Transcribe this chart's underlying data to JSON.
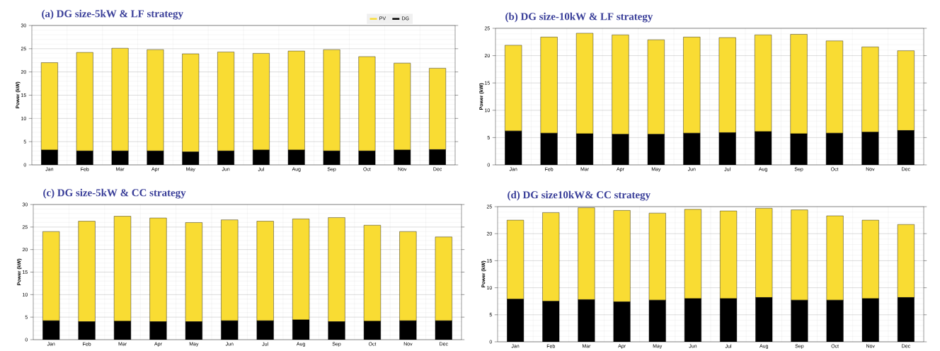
{
  "chart_data": [
    {
      "type": "bar",
      "title": "(a) DG size-5kW & LF strategy",
      "ylabel": "Power (kW)",
      "categories": [
        "Jan",
        "Feb",
        "Mar",
        "Apr",
        "May",
        "Jun",
        "Jul",
        "Aug",
        "Sep",
        "Oct",
        "Nov",
        "Dec"
      ],
      "stacked": true,
      "ylim": [
        0,
        30
      ],
      "yticks": [
        0,
        5,
        10,
        15,
        20,
        25,
        30
      ],
      "grid": true,
      "legend": "top right",
      "series": [
        {
          "name": "DG",
          "color": "#000000",
          "values": [
            3.2,
            3.0,
            3.0,
            3.0,
            2.8,
            3.0,
            3.2,
            3.2,
            3.0,
            3.0,
            3.2,
            3.3
          ]
        },
        {
          "name": "PV",
          "color": "#f9dc33",
          "values": [
            18.8,
            21.2,
            22.1,
            21.8,
            21.1,
            21.3,
            20.8,
            21.3,
            21.8,
            20.3,
            18.7,
            17.5
          ]
        }
      ]
    },
    {
      "type": "bar",
      "title": "(b) DG size-10kW & LF strategy",
      "ylabel": "Power (kW)",
      "categories": [
        "Jan",
        "Feb",
        "Mar",
        "Apr",
        "May",
        "Jun",
        "Jul",
        "Aug",
        "Sep",
        "Oct",
        "Nov",
        "Dec"
      ],
      "stacked": true,
      "ylim": [
        0,
        25
      ],
      "yticks": [
        0,
        5,
        10,
        15,
        20,
        25
      ],
      "grid": true,
      "series": [
        {
          "color": "#000000",
          "values": [
            6.2,
            5.8,
            5.7,
            5.6,
            5.6,
            5.8,
            5.9,
            6.1,
            5.7,
            5.8,
            6.0,
            6.3
          ]
        },
        {
          "color": "#f9dc33",
          "values": [
            15.7,
            17.6,
            18.4,
            18.2,
            17.3,
            17.6,
            17.4,
            17.7,
            18.2,
            16.9,
            15.6,
            14.6
          ]
        }
      ]
    },
    {
      "type": "bar",
      "title": "(c) DG size-5kW & CC strategy",
      "ylabel": "Power (kW)",
      "categories": [
        "Jan",
        "Feb",
        "Mar",
        "Apr",
        "May",
        "Jun",
        "Jul",
        "Aug",
        "Sep",
        "Oct",
        "Nov",
        "Dec"
      ],
      "stacked": true,
      "ylim": [
        0,
        30
      ],
      "yticks": [
        0,
        5,
        10,
        15,
        20,
        25,
        30
      ],
      "grid": true,
      "series": [
        {
          "color": "#000000",
          "values": [
            4.2,
            4.0,
            4.1,
            4.0,
            4.0,
            4.2,
            4.2,
            4.4,
            4.0,
            4.1,
            4.2,
            4.2
          ]
        },
        {
          "color": "#f9dc33",
          "values": [
            19.8,
            22.3,
            23.3,
            23.0,
            22.0,
            22.4,
            22.1,
            22.4,
            23.1,
            21.3,
            19.8,
            18.6
          ]
        }
      ]
    },
    {
      "type": "bar",
      "title": "(d) DG size10kW& CC strategy",
      "ylabel": "Power (kW)",
      "categories": [
        "Jan",
        "Feb",
        "Mar",
        "Apr",
        "May",
        "Jun",
        "Jul",
        "Aug",
        "Sep",
        "Oct",
        "Nov",
        "Dec"
      ],
      "stacked": true,
      "ylim": [
        0,
        25
      ],
      "yticks": [
        0,
        5,
        10,
        15,
        20,
        25
      ],
      "grid": true,
      "series": [
        {
          "color": "#000000",
          "values": [
            7.9,
            7.5,
            7.8,
            7.4,
            7.7,
            8.0,
            8.0,
            8.2,
            7.7,
            7.7,
            8.0,
            8.2
          ]
        },
        {
          "color": "#f9dc33",
          "values": [
            14.6,
            16.4,
            17.0,
            16.9,
            16.1,
            16.5,
            16.2,
            16.5,
            16.7,
            15.6,
            14.5,
            13.5
          ]
        }
      ]
    }
  ]
}
